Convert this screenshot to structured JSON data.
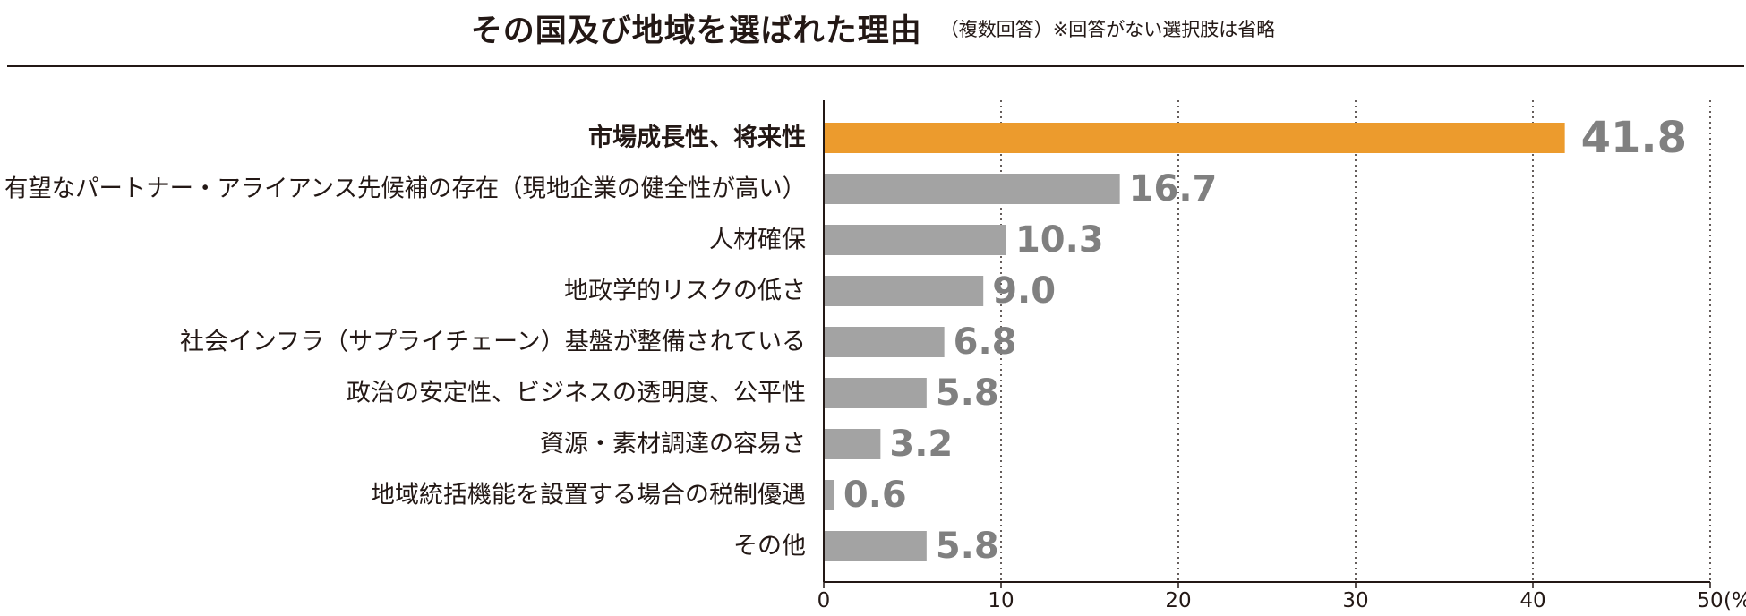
{
  "title": "その国及び地域を選ばれた理由",
  "subtitle": "（複数回答）※回答がない選択肢は省略",
  "colors": {
    "highlight": "#ec9b2d",
    "bar": "#a3a3a3",
    "value_text": "#808080",
    "text": "#231815"
  },
  "chart_data": {
    "type": "bar",
    "orientation": "horizontal",
    "title": "その国及び地域を選ばれた理由",
    "subtitle": "（複数回答）※回答がない選択肢は省略",
    "categories": [
      "市場成長性、将来性",
      "有望なパートナー・アライアンス先候補の存在（現地企業の健全性が高い）",
      "人材確保",
      "地政学的リスクの低さ",
      "社会インフラ（サプライチェーン）基盤が整備されている",
      "政治の安定性、ビジネスの透明度、公平性",
      "資源・素材調達の容易さ",
      "地域統括機能を設置する場合の税制優遇",
      "その他"
    ],
    "values": [
      41.8,
      16.7,
      10.3,
      9.0,
      6.8,
      5.8,
      3.2,
      0.6,
      5.8
    ],
    "value_labels": [
      "41.8",
      "16.7",
      "10.3",
      "9.0",
      "6.8",
      "5.8",
      "3.2",
      "0.6",
      "5.8"
    ],
    "highlight_index": 0,
    "xlim": [
      0,
      50
    ],
    "xticks": [
      0,
      10,
      20,
      30,
      40,
      50
    ],
    "xtick_labels": [
      "0",
      "10",
      "20",
      "30",
      "40",
      "50"
    ],
    "unit_label": "(%)",
    "grid": "vertical dotted"
  }
}
